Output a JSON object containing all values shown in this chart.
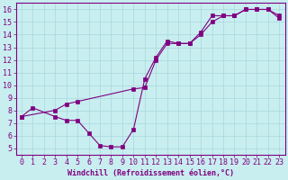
{
  "xlabel": "Windchill (Refroidissement éolien,°C)",
  "background_color": "#c8eef0",
  "line_color": "#800080",
  "marker_color": "#800080",
  "grid_color": "#a8d8dc",
  "axis_color": "#800080",
  "tick_color": "#800080",
  "xlim": [
    -0.5,
    23.5
  ],
  "ylim": [
    4.5,
    16.5
  ],
  "xticks": [
    0,
    1,
    2,
    3,
    4,
    5,
    6,
    7,
    8,
    9,
    10,
    11,
    12,
    13,
    14,
    15,
    16,
    17,
    18,
    19,
    20,
    21,
    22,
    23
  ],
  "yticks": [
    5,
    6,
    7,
    8,
    9,
    10,
    11,
    12,
    13,
    14,
    15,
    16
  ],
  "line1_x": [
    0,
    1,
    3,
    4,
    5,
    6,
    7,
    8,
    9,
    10,
    11,
    12,
    13,
    14,
    15,
    16,
    17,
    18,
    19,
    20,
    21,
    22,
    23
  ],
  "line1_y": [
    7.5,
    8.2,
    7.5,
    7.2,
    7.2,
    6.2,
    5.2,
    5.1,
    5.1,
    6.5,
    10.5,
    12.2,
    13.5,
    13.3,
    13.3,
    14.0,
    15.0,
    15.5,
    15.5,
    16.0,
    16.0,
    16.0,
    15.5
  ],
  "line2_x": [
    0,
    3,
    4,
    5,
    10,
    11,
    12,
    13,
    14,
    15,
    16,
    17,
    18,
    19,
    20,
    21,
    22,
    23
  ],
  "line2_y": [
    7.5,
    8.0,
    8.5,
    8.7,
    9.7,
    9.8,
    12.0,
    13.3,
    13.3,
    13.3,
    14.2,
    15.5,
    15.5,
    15.5,
    16.0,
    16.0,
    16.0,
    15.3
  ],
  "font_family": "monospace",
  "font_size": 6,
  "marker_size": 2.5,
  "linewidth": 0.8
}
